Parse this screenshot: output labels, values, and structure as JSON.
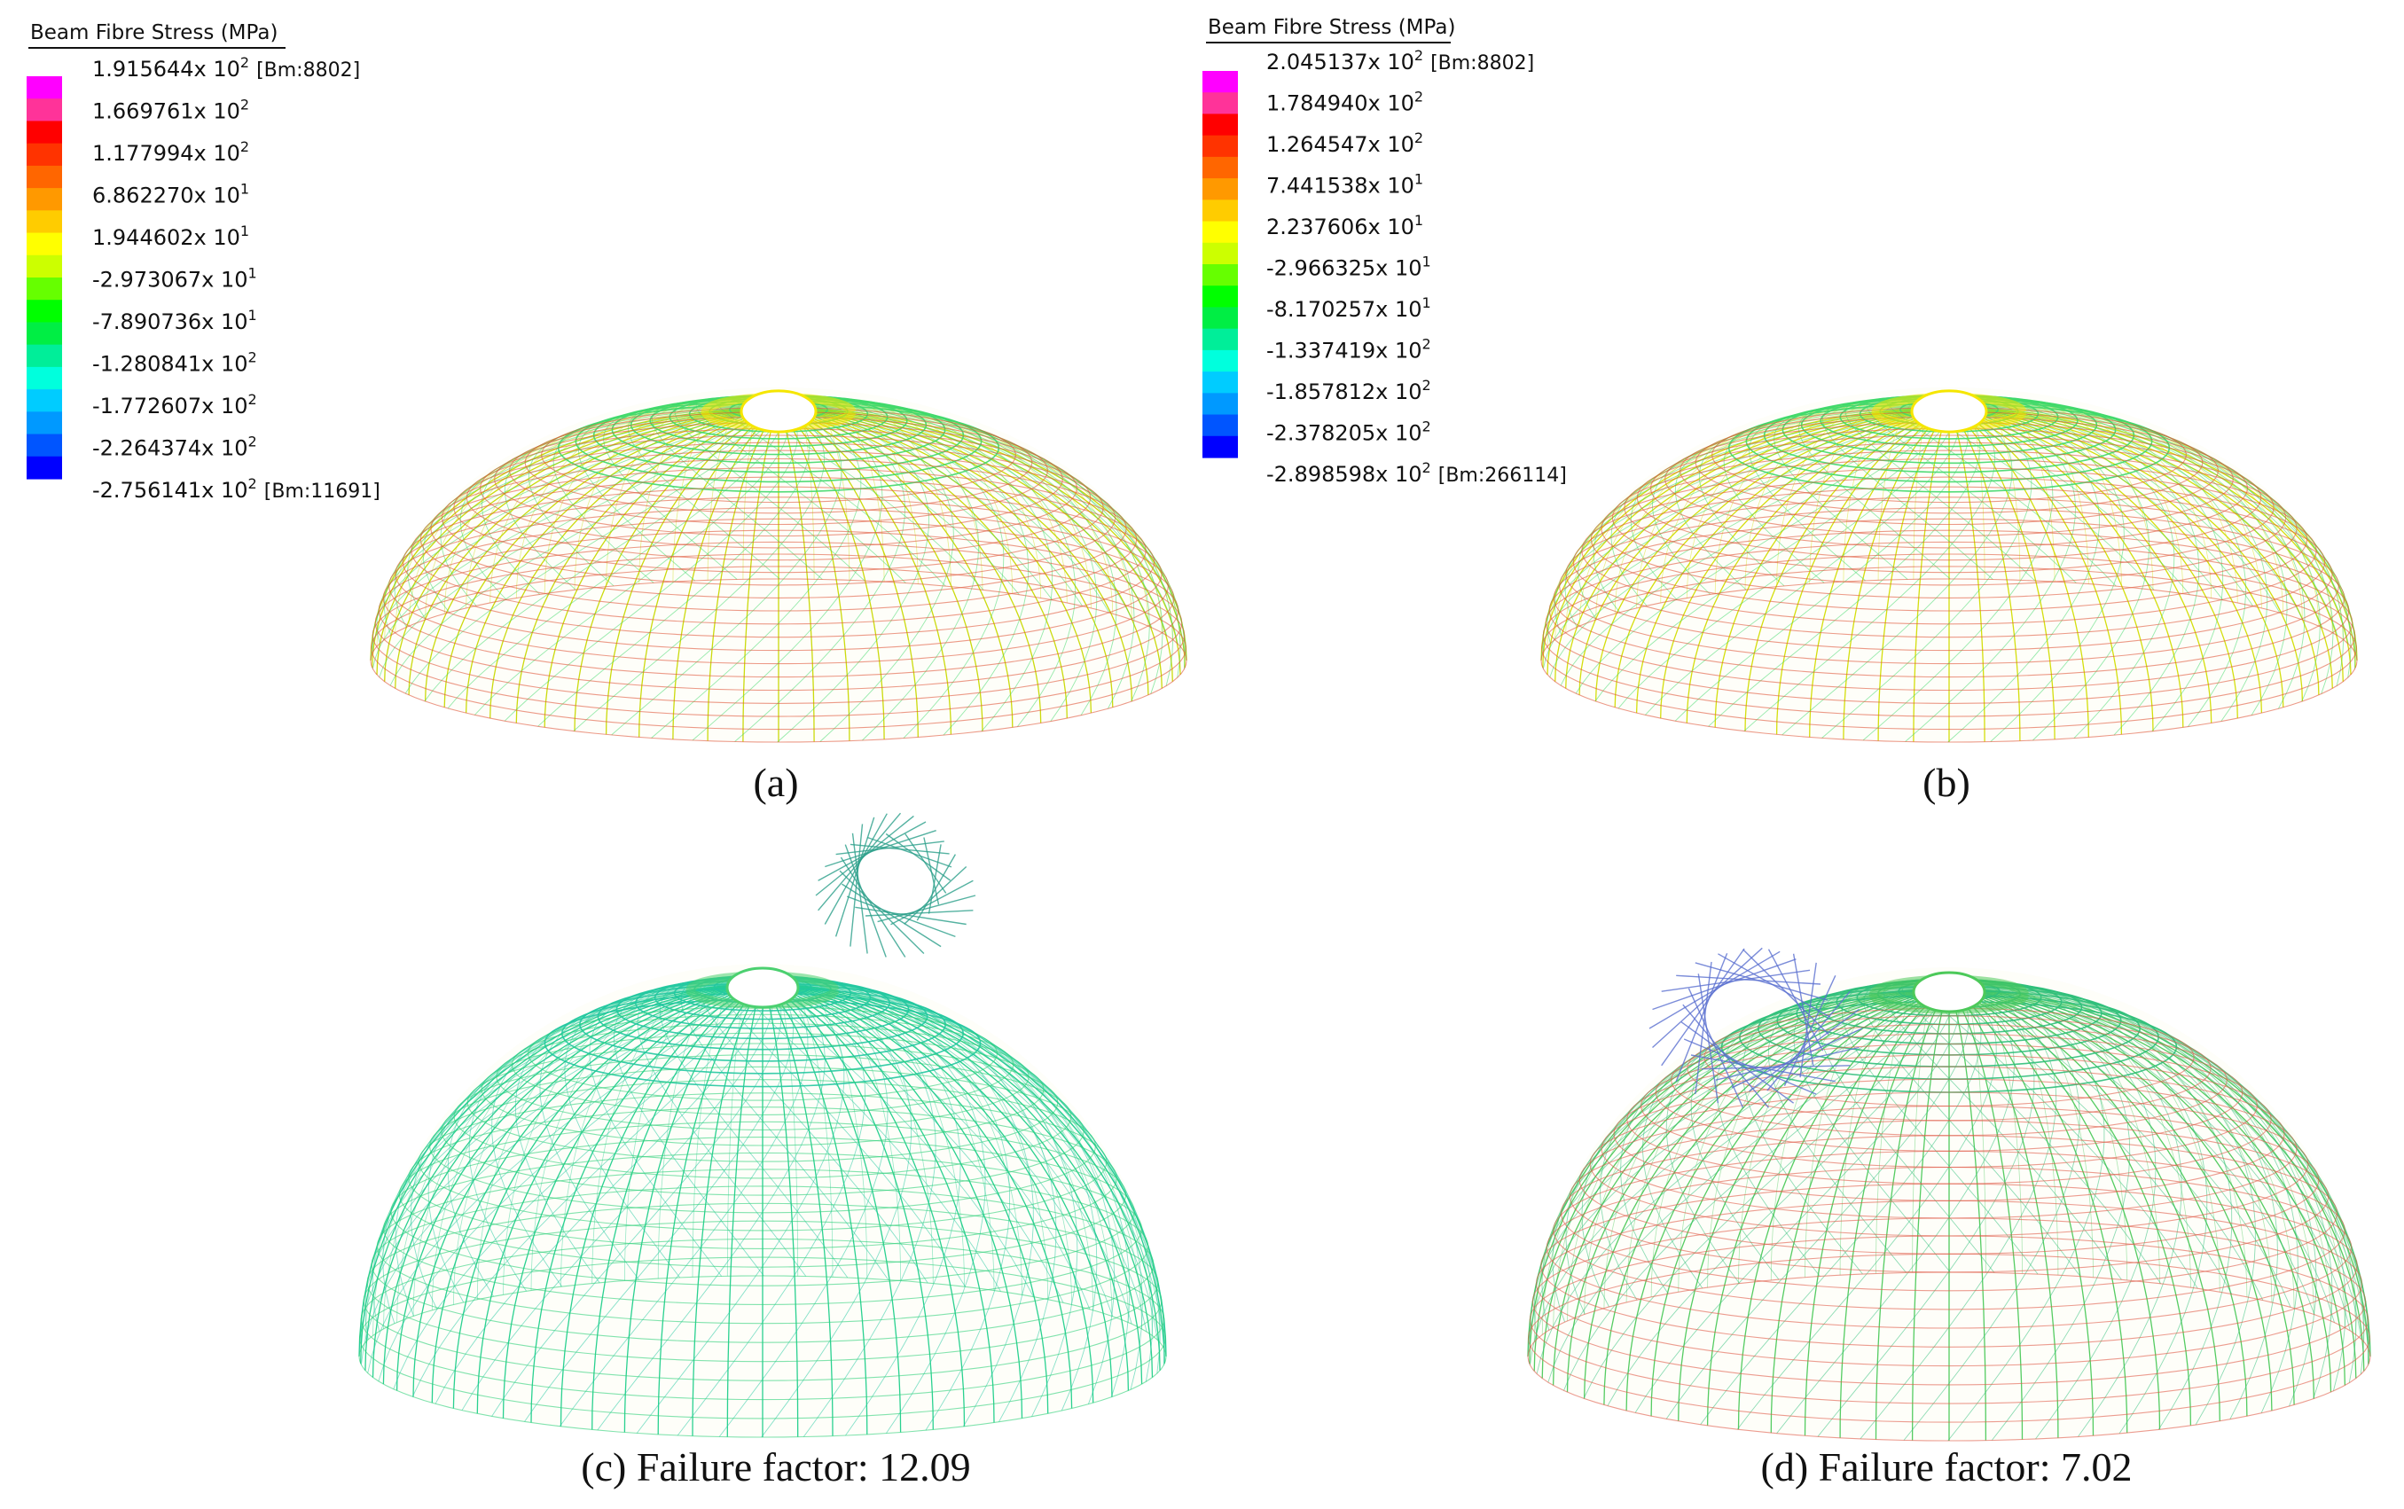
{
  "legends": [
    {
      "title": "Beam Fibre Stress  (MPa)",
      "entries": [
        {
          "mantissa": "1.915644x 10",
          "exp": "2",
          "note": "[Bm:8802]"
        },
        {
          "mantissa": "1.669761x 10",
          "exp": "2",
          "note": ""
        },
        {
          "mantissa": "1.177994x 10",
          "exp": "2",
          "note": ""
        },
        {
          "mantissa": "6.862270x 10",
          "exp": "1",
          "note": ""
        },
        {
          "mantissa": "1.944602x 10",
          "exp": "1",
          "note": ""
        },
        {
          "mantissa": "-2.973067x 10",
          "exp": "1",
          "note": ""
        },
        {
          "mantissa": "-7.890736x 10",
          "exp": "1",
          "note": ""
        },
        {
          "mantissa": "-1.280841x 10",
          "exp": "2",
          "note": ""
        },
        {
          "mantissa": "-1.772607x 10",
          "exp": "2",
          "note": ""
        },
        {
          "mantissa": "-2.264374x 10",
          "exp": "2",
          "note": ""
        },
        {
          "mantissa": "-2.756141x 10",
          "exp": "2",
          "note": "[Bm:11691]"
        }
      ]
    },
    {
      "title": "Beam Fibre Stress  (MPa)",
      "entries": [
        {
          "mantissa": "2.045137x 10",
          "exp": "2",
          "note": "[Bm:8802]"
        },
        {
          "mantissa": "1.784940x 10",
          "exp": "2",
          "note": ""
        },
        {
          "mantissa": "1.264547x 10",
          "exp": "2",
          "note": ""
        },
        {
          "mantissa": "7.441538x 10",
          "exp": "1",
          "note": ""
        },
        {
          "mantissa": "2.237606x 10",
          "exp": "1",
          "note": ""
        },
        {
          "mantissa": "-2.966325x 10",
          "exp": "1",
          "note": ""
        },
        {
          "mantissa": "-8.170257x 10",
          "exp": "1",
          "note": ""
        },
        {
          "mantissa": "-1.337419x 10",
          "exp": "2",
          "note": ""
        },
        {
          "mantissa": "-1.857812x 10",
          "exp": "2",
          "note": ""
        },
        {
          "mantissa": "-2.378205x 10",
          "exp": "2",
          "note": ""
        },
        {
          "mantissa": "-2.898598x 10",
          "exp": "2",
          "note": "[Bm:266114]"
        }
      ]
    }
  ],
  "colorbar": [
    "#ff00ff",
    "#ff3399",
    "#ff0000",
    "#ff3300",
    "#ff6600",
    "#ff9900",
    "#ffcc00",
    "#ffff00",
    "#ccff00",
    "#66ff00",
    "#00ff00",
    "#00ee44",
    "#00ee99",
    "#00ffdd",
    "#00ccff",
    "#0099ff",
    "#0055ff",
    "#0000ff"
  ],
  "captions": {
    "a": "(a)",
    "b": "(b)",
    "c": "(c) Failure factor:  12.09",
    "d": "(d) Failure factor:  7.02"
  },
  "panels": [
    {
      "id": "a",
      "meridian_color": "#c8d800",
      "ring_color": "#e0563a",
      "top_color": "#3fd86a",
      "crown_color": "#f5e600"
    },
    {
      "id": "b",
      "meridian_color": "#d2dc00",
      "ring_color": "#e0563a",
      "top_color": "#3fd86a",
      "crown_color": "#f5e600"
    },
    {
      "id": "c",
      "meridian_color": "#1fcf8a",
      "ring_color": "#2fd07a",
      "top_color": "#22c8a0",
      "crown_color": "#4bd070"
    },
    {
      "id": "d",
      "meridian_color": "#4cc95a",
      "ring_color": "#e05a48",
      "top_color": "#2fbf7a",
      "crown_color": "#4cc95a"
    }
  ]
}
